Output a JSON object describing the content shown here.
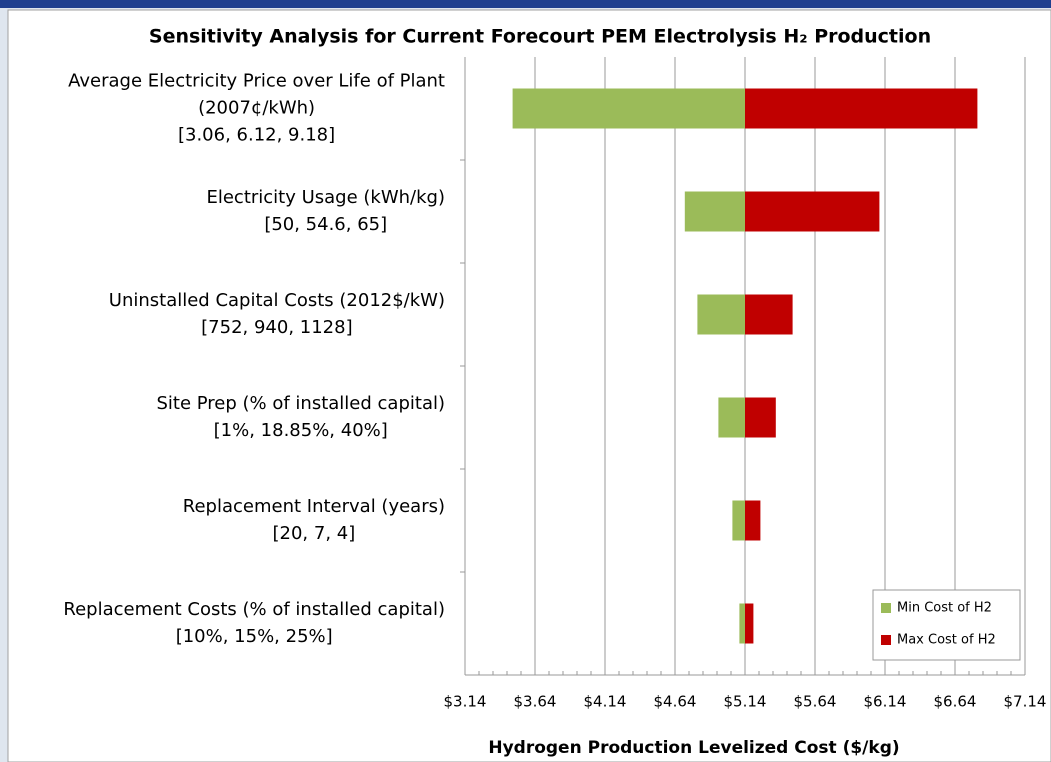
{
  "chart_data": {
    "type": "tornado",
    "title": "Sensitivity Analysis for Current Forecourt PEM Electrolysis H₂ Production",
    "x_label": "Hydrogen Production Levelized Cost ($/kg)",
    "categories": [
      [
        "Average Electricity Price over Life of Plant",
        "(2007¢/kWh)",
        "[3.06, 6.12, 9.18]"
      ],
      [
        "Electricity Usage (kWh/kg)",
        "[50, 54.6, 65]"
      ],
      [
        "Uninstalled Capital Costs (2012$/kW)",
        "[752, 940, 1128]"
      ],
      [
        "Site Prep (% of installed capital)",
        "[1%, 18.85%, 40%]"
      ],
      [
        "Replacement Interval (years)",
        "[20, 7, 4]"
      ],
      [
        "Replacement Costs (% of installed capital)",
        "[10%, 15%, 25%]"
      ]
    ],
    "series": [
      {
        "name": "Min Cost of H2",
        "color": "#9bbb59",
        "values": [
          3.48,
          4.71,
          4.8,
          4.95,
          5.05,
          5.1
        ]
      },
      {
        "name": "Max Cost of H2",
        "color": "#c00000",
        "values": [
          6.8,
          6.1,
          5.48,
          5.36,
          5.25,
          5.2
        ]
      }
    ],
    "xlim": [
      3.14,
      7.14
    ],
    "xticks": [
      {
        "value": 3.14,
        "label": "$3.14"
      },
      {
        "value": 3.64,
        "label": "$3.64"
      },
      {
        "value": 4.14,
        "label": "$4.14"
      },
      {
        "value": 4.64,
        "label": "$4.64"
      },
      {
        "value": 5.14,
        "label": "$5.14"
      },
      {
        "value": 5.64,
        "label": "$5.64"
      },
      {
        "value": 6.14,
        "label": "$6.14"
      },
      {
        "value": 6.64,
        "label": "$6.64"
      },
      {
        "value": 7.14,
        "label": "$7.14"
      }
    ],
    "grid": true,
    "legend": "lower right"
  }
}
